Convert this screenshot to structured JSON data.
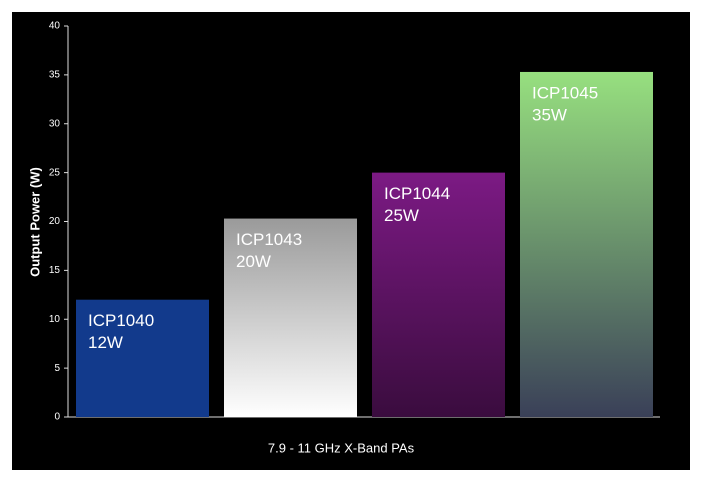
{
  "chart_data": {
    "type": "bar",
    "x_label": "7.9 - 11 GHz X-Band PAs",
    "y_label": "Output Power (W)",
    "categories": [
      "ICP1040",
      "ICP1043",
      "ICP1044",
      "ICP1045"
    ],
    "values": [
      12,
      20.3,
      25,
      35.3
    ],
    "value_labels": [
      "12W",
      "20W",
      "25W",
      "35W"
    ],
    "colors": [
      [
        "#123a8c",
        "#123a8c"
      ],
      [
        "#9a9a9a",
        "#ffffff"
      ],
      [
        "#7c1a84",
        "#3a0c3e"
      ],
      [
        "#97e07f",
        "#3a4058"
      ]
    ],
    "ylim": [
      0,
      40
    ],
    "yticks": [
      0,
      5,
      10,
      15,
      20,
      25,
      30,
      35,
      40
    ],
    "grid": false
  }
}
